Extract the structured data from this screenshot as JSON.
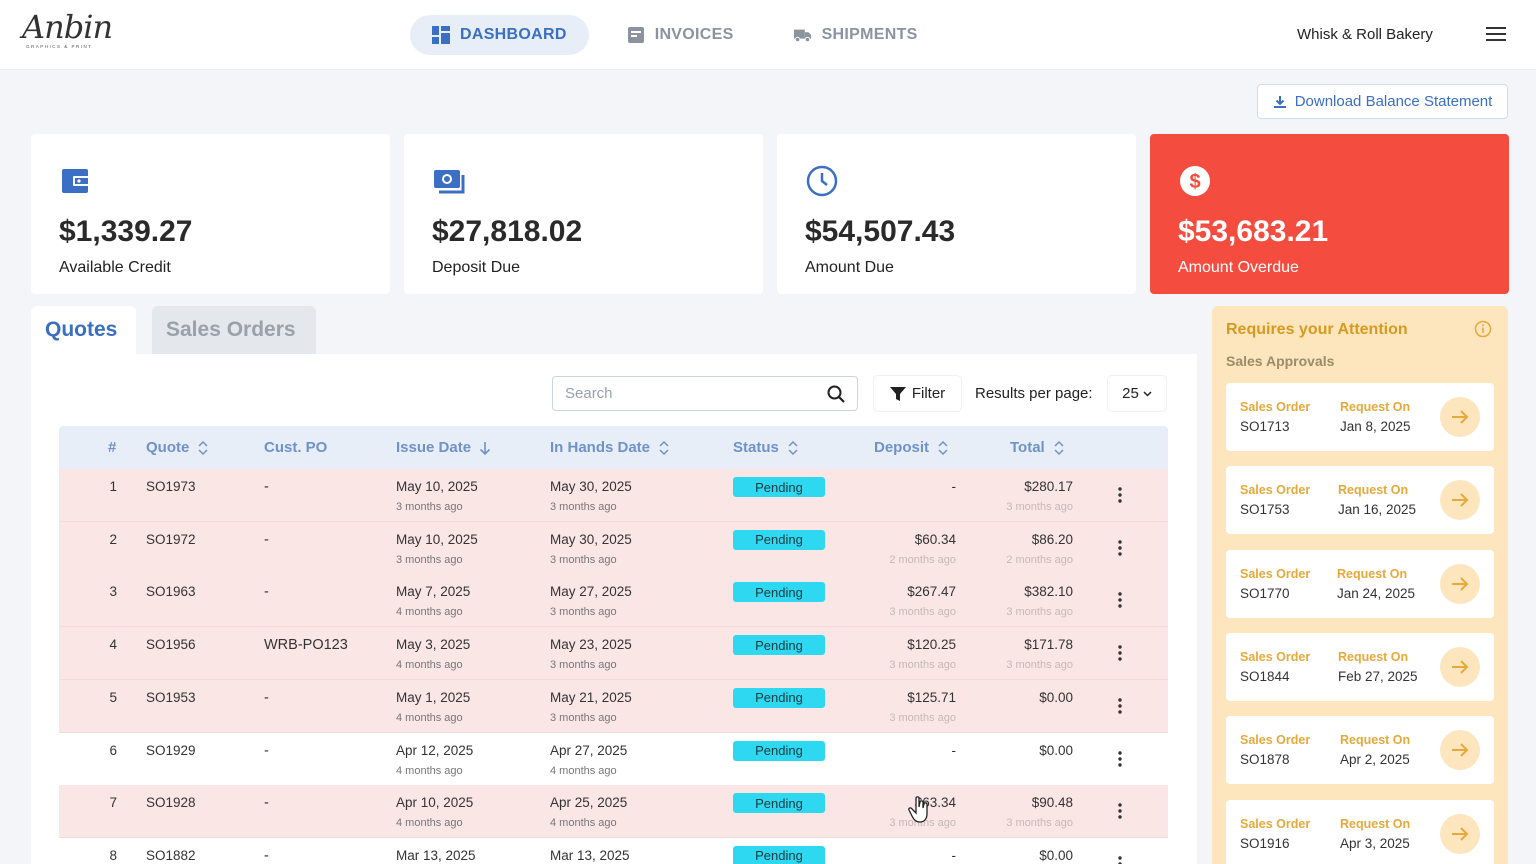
{
  "header": {
    "logo_text": "Anbin",
    "logo_sub": "GRAPHICS & PRINT",
    "nav": [
      {
        "label": "DASHBOARD",
        "icon": "dashboard-icon",
        "active": true
      },
      {
        "label": "INVOICES",
        "icon": "invoice-icon",
        "active": false
      },
      {
        "label": "SHIPMENTS",
        "icon": "truck-icon",
        "active": false
      }
    ],
    "company": "Whisk & Roll Bakery",
    "menu_icon": "hamburger-menu-icon"
  },
  "download_label": "Download Balance Statement",
  "cards": [
    {
      "amount": "$1,339.27",
      "label": "Available Credit",
      "icon": "wallet-icon"
    },
    {
      "amount": "$27,818.02",
      "label": "Deposit Due",
      "icon": "cash-icon"
    },
    {
      "amount": "$54,507.43",
      "label": "Amount Due",
      "icon": "clock-icon"
    },
    {
      "amount": "$53,683.21",
      "label": "Amount Overdue",
      "icon": "dollar-icon",
      "accent": "#f44c3f"
    }
  ],
  "tabs": [
    "Quotes",
    "Sales Orders"
  ],
  "search_placeholder": "Search",
  "filter_label": "Filter",
  "results_label": "Results per page:",
  "results_value": "25",
  "table": {
    "columns": [
      "#",
      "Quote",
      "Cust. PO",
      "Issue Date",
      "In Hands Date",
      "Status",
      "Deposit",
      "Total"
    ],
    "rows": [
      {
        "n": "1",
        "quote": "SO1973",
        "po": "-",
        "issue": "May 10, 2025",
        "issue_ago": "3 months ago",
        "hands": "May 30, 2025",
        "hands_ago": "3 months ago",
        "status": "Pending",
        "deposit": "-",
        "deposit_ago": "",
        "total": "$280.17",
        "total_ago": "3 months ago",
        "overdue": true
      },
      {
        "n": "2",
        "quote": "SO1972",
        "po": "-",
        "issue": "May 10, 2025",
        "issue_ago": "3 months ago",
        "hands": "May 30, 2025",
        "hands_ago": "3 months ago",
        "status": "Pending",
        "deposit": "$60.34",
        "deposit_ago": "2 months ago",
        "total": "$86.20",
        "total_ago": "2 months ago",
        "overdue": true
      },
      {
        "n": "3",
        "quote": "SO1963",
        "po": "-",
        "issue": "May 7, 2025",
        "issue_ago": "4 months ago",
        "hands": "May 27, 2025",
        "hands_ago": "3 months ago",
        "status": "Pending",
        "deposit": "$267.47",
        "deposit_ago": "3 months ago",
        "total": "$382.10",
        "total_ago": "3 months ago",
        "overdue": true
      },
      {
        "n": "4",
        "quote": "SO1956",
        "po": "WRB-PO123",
        "issue": "May 3, 2025",
        "issue_ago": "4 months ago",
        "hands": "May 23, 2025",
        "hands_ago": "3 months ago",
        "status": "Pending",
        "deposit": "$120.25",
        "deposit_ago": "3 months ago",
        "total": "$171.78",
        "total_ago": "3 months ago",
        "overdue": true
      },
      {
        "n": "5",
        "quote": "SO1953",
        "po": "-",
        "issue": "May 1, 2025",
        "issue_ago": "4 months ago",
        "hands": "May 21, 2025",
        "hands_ago": "3 months ago",
        "status": "Pending",
        "deposit": "$125.71",
        "deposit_ago": "3 months ago",
        "total": "$0.00",
        "total_ago": "",
        "overdue": true
      },
      {
        "n": "6",
        "quote": "SO1929",
        "po": "-",
        "issue": "Apr 12, 2025",
        "issue_ago": "4 months ago",
        "hands": "Apr 27, 2025",
        "hands_ago": "4 months ago",
        "status": "Pending",
        "deposit": "-",
        "deposit_ago": "",
        "total": "$0.00",
        "total_ago": "",
        "overdue": false
      },
      {
        "n": "7",
        "quote": "SO1928",
        "po": "-",
        "issue": "Apr 10, 2025",
        "issue_ago": "4 months ago",
        "hands": "Apr 25, 2025",
        "hands_ago": "4 months ago",
        "status": "Pending",
        "deposit": "$63.34",
        "deposit_ago": "3 months ago",
        "total": "$90.48",
        "total_ago": "3 months ago",
        "overdue": true
      },
      {
        "n": "8",
        "quote": "SO1882",
        "po": "-",
        "issue": "Mar 13, 2025",
        "issue_ago": "",
        "hands": "Mar 13, 2025",
        "hands_ago": "",
        "status": "Pending",
        "deposit": "-",
        "deposit_ago": "",
        "total": "$0.00",
        "total_ago": "",
        "overdue": false
      }
    ]
  },
  "attention": {
    "title": "Requires your Attention",
    "subtitle": "Sales Approvals",
    "key1": "Sales Order",
    "key2": "Request On",
    "items": [
      {
        "order": "SO1713",
        "date": "Jan 8, 2025"
      },
      {
        "order": "SO1753",
        "date": "Jan 16, 2025"
      },
      {
        "order": "SO1770",
        "date": "Jan 24, 2025"
      },
      {
        "order": "SO1844",
        "date": "Feb 27, 2025"
      },
      {
        "order": "SO1878",
        "date": "Apr 2, 2025"
      },
      {
        "order": "SO1916",
        "date": "Apr 3, 2025"
      }
    ]
  },
  "colors": {
    "accent": "#3a6fc4",
    "overdue": "#f44c3f",
    "pending": "#2ed8f0",
    "attention": "#fde6be"
  }
}
